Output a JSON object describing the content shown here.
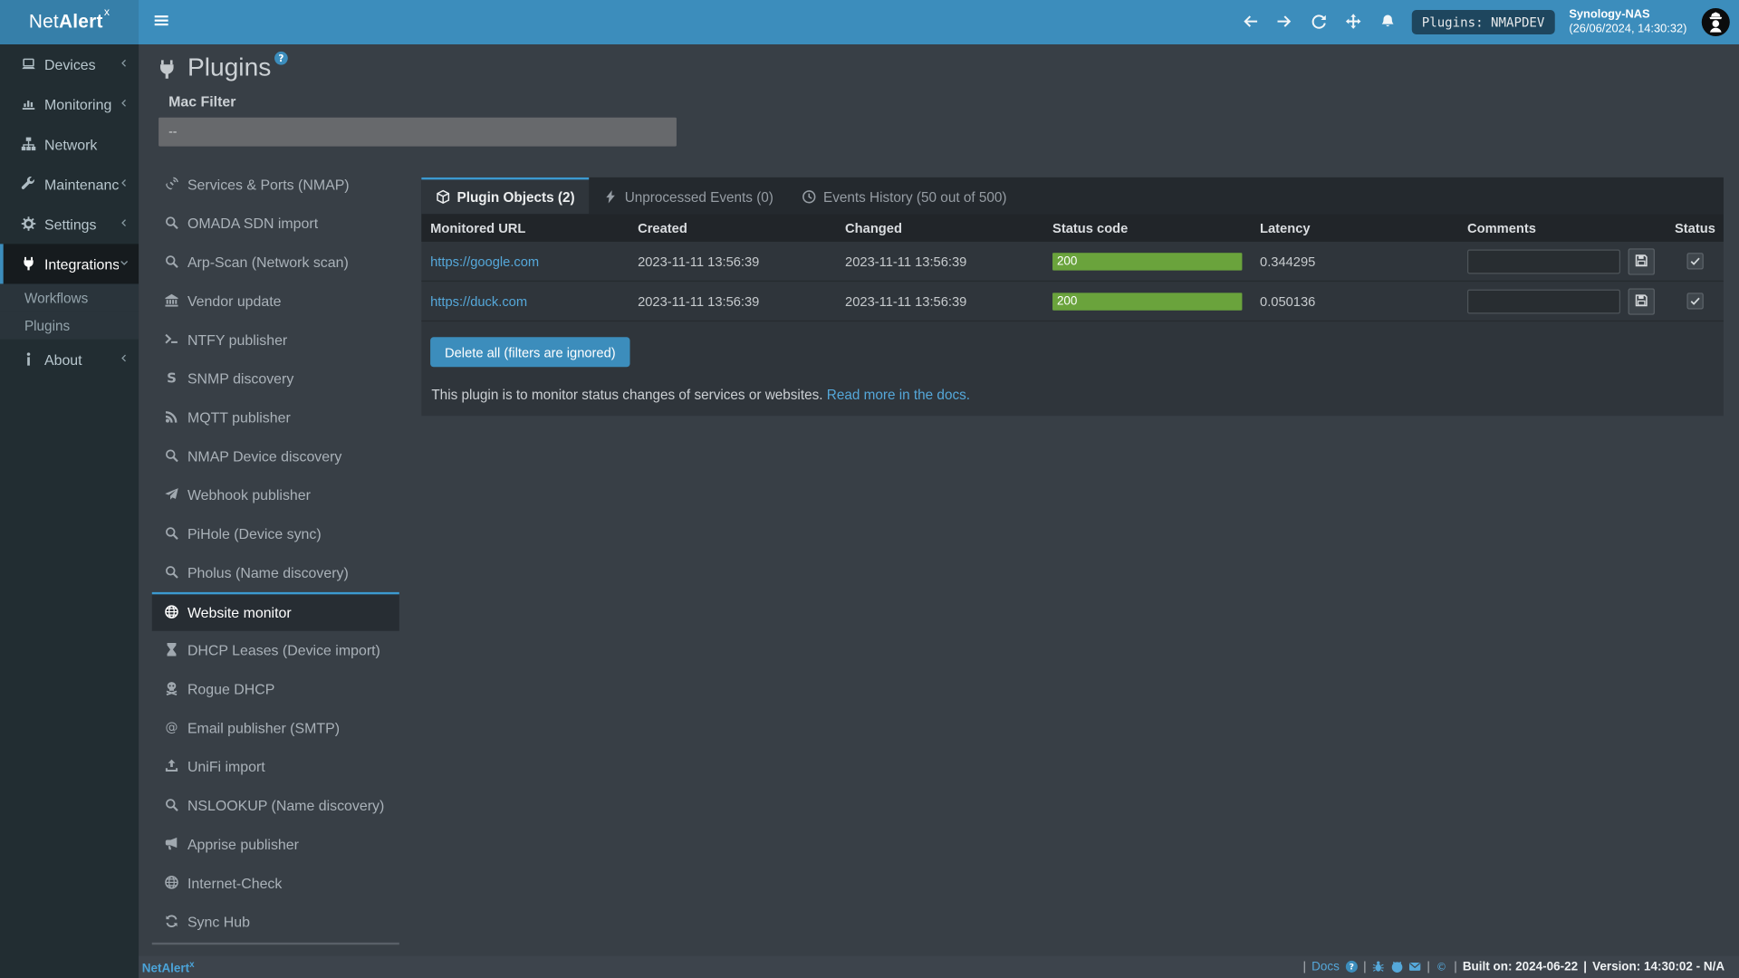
{
  "colors": {
    "accent_blue": "#3c8dbc",
    "tab_accent": "#3c9ad0",
    "link_blue": "#55a8da",
    "status_green": "#6aa33c",
    "sidebar_bg": "#222d32",
    "panel_bg": "#2f353b",
    "content_bg": "#383f46"
  },
  "navbar": {
    "brand": "Net",
    "brand_bold": "Alert",
    "brand_sup": "x",
    "icons": [
      {
        "icon": "arrow-left",
        "name": "nav-back-icon"
      },
      {
        "icon": "arrow-right",
        "name": "nav-forward-icon"
      },
      {
        "icon": "refresh",
        "name": "refresh-icon"
      },
      {
        "icon": "fullscreen",
        "name": "fullscreen-icon"
      },
      {
        "icon": "bell",
        "name": "notifications-bell-icon"
      }
    ],
    "status_badge": "Plugins: NMAPDEV",
    "host_name": "Synology-NAS",
    "host_time": "(26/06/2024, 14:30:32)"
  },
  "sidebar": {
    "items": [
      {
        "label": "Devices",
        "icon": "laptop",
        "chevron": "left",
        "type": "item"
      },
      {
        "label": "Monitoring",
        "icon": "chart",
        "chevron": "left",
        "type": "item"
      },
      {
        "label": "Network",
        "icon": "sitemap",
        "chevron": "none",
        "type": "item"
      },
      {
        "label": "Maintenance",
        "icon": "wrench",
        "chevron": "left",
        "type": "item"
      },
      {
        "label": "Settings",
        "icon": "gear",
        "chevron": "left",
        "type": "item"
      },
      {
        "label": "Integrations",
        "icon": "plug",
        "chevron": "down",
        "type": "item",
        "active": true
      },
      {
        "label": "Workflows",
        "icon": "",
        "chevron": "none",
        "type": "sub"
      },
      {
        "label": "Plugins",
        "icon": "",
        "chevron": "none",
        "type": "sub"
      },
      {
        "label": "About",
        "icon": "info",
        "chevron": "left",
        "type": "item"
      }
    ]
  },
  "page": {
    "title": "Plugins",
    "title_icon": "plug",
    "help_badge": "?",
    "mac_filter_label": "Mac Filter",
    "mac_filter_value": "--"
  },
  "plugin_nav": {
    "items": [
      {
        "label": "Services & Ports (NMAP)",
        "icon": "satellite"
      },
      {
        "label": "OMADA SDN import",
        "icon": "magnifier"
      },
      {
        "label": "Arp-Scan (Network scan)",
        "icon": "magnifier"
      },
      {
        "label": "Vendor update",
        "icon": "bank"
      },
      {
        "label": "NTFY publisher",
        "icon": "terminal"
      },
      {
        "label": "SNMP discovery",
        "icon": "s-icon"
      },
      {
        "label": "MQTT publisher",
        "icon": "rss"
      },
      {
        "label": "NMAP Device discovery",
        "icon": "magnifier"
      },
      {
        "label": "Webhook publisher",
        "icon": "paper-plane"
      },
      {
        "label": "PiHole (Device sync)",
        "icon": "magnifier"
      },
      {
        "label": "Pholus (Name discovery)",
        "icon": "magnifier"
      },
      {
        "label": "Website monitor",
        "icon": "globe",
        "active": true
      },
      {
        "label": "DHCP Leases (Device import)",
        "icon": "hourglass"
      },
      {
        "label": "Rogue DHCP",
        "icon": "skull"
      },
      {
        "label": "Email publisher (SMTP)",
        "icon": "at"
      },
      {
        "label": "UniFi import",
        "icon": "upload"
      },
      {
        "label": "NSLOOKUP (Name discovery)",
        "icon": "magnifier"
      },
      {
        "label": "Apprise publisher",
        "icon": "megaphone"
      },
      {
        "label": "Internet-Check",
        "icon": "globe"
      },
      {
        "label": "Sync Hub",
        "icon": "sync"
      }
    ]
  },
  "panel": {
    "tabs": [
      {
        "label": "Plugin Objects (2)",
        "icon": "cube",
        "active": true
      },
      {
        "label": "Unprocessed Events (0)",
        "icon": "bolt"
      },
      {
        "label": "Events History (50 out of 500)",
        "icon": "clock"
      }
    ],
    "table": {
      "headers": [
        "Monitored URL",
        "Created",
        "Changed",
        "Status code",
        "Latency",
        "Comments",
        "Status"
      ],
      "rows": [
        {
          "url": "https://google.com",
          "created": "2023-11-11 13:56:39",
          "changed": "2023-11-11 13:56:39",
          "status_code": "200",
          "latency": "0.344295",
          "comment": "",
          "checked": true
        },
        {
          "url": "https://duck.com",
          "created": "2023-11-11 13:56:39",
          "changed": "2023-11-11 13:56:39",
          "status_code": "200",
          "latency": "0.050136",
          "comment": "",
          "checked": true
        }
      ]
    },
    "delete_button": "Delete all (filters are ignored)",
    "description": "This plugin is to monitor status changes of services or websites.",
    "docs_link": "Read more in the docs."
  },
  "footer": {
    "brand": "Net",
    "brand_bold": "Alert",
    "brand_sup": "x",
    "right_parts": [
      {
        "type": "sep",
        "text": "|"
      },
      {
        "type": "link",
        "text": "Docs",
        "name": "docs-link"
      },
      {
        "type": "icon",
        "icon": "question-badge",
        "name": "docs-help-icon"
      },
      {
        "type": "sep",
        "text": "|"
      },
      {
        "type": "icon",
        "icon": "bug",
        "name": "bug-report-icon"
      },
      {
        "type": "icon",
        "icon": "github",
        "name": "github-icon"
      },
      {
        "type": "icon",
        "icon": "envelope",
        "name": "email-icon"
      },
      {
        "type": "sep",
        "text": "|"
      },
      {
        "type": "icon",
        "icon": "copyright",
        "name": "copyright-icon"
      },
      {
        "type": "sep",
        "text": "|"
      },
      {
        "type": "bold",
        "text": "Built on: 2024-06-22",
        "name": "built-on"
      },
      {
        "type": "sep-bold",
        "text": "|"
      },
      {
        "type": "bold",
        "text": "Version: 14:30:02 - N/A",
        "name": "version"
      }
    ]
  }
}
